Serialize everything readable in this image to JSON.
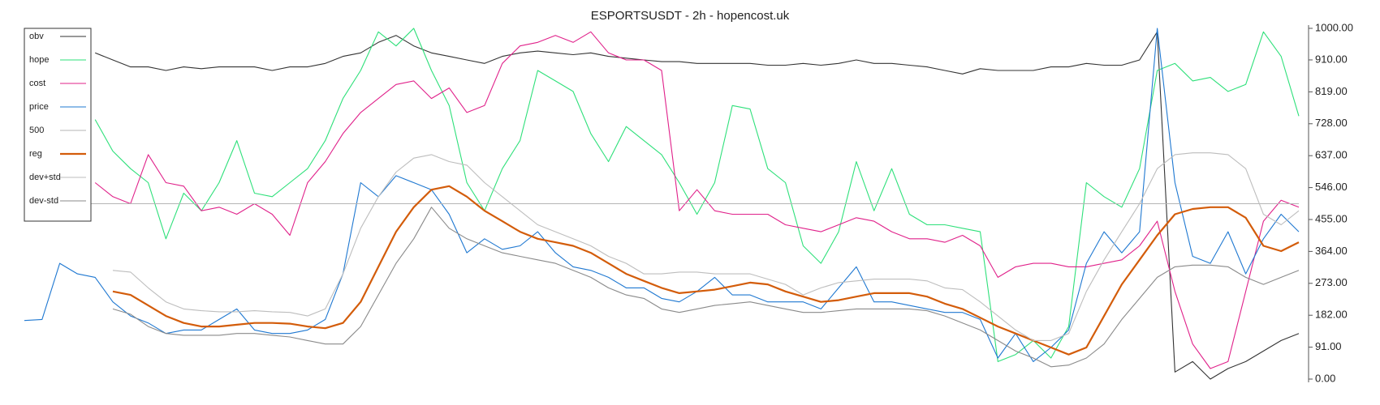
{
  "chart_data": {
    "type": "line",
    "title": "ESPORTSUSDT - 2h - hopencost.uk",
    "ylim": [
      0,
      1000
    ],
    "yticks": [
      {
        "value": 0,
        "label": "0.00"
      },
      {
        "value": 91,
        "label": "91.00"
      },
      {
        "value": 182,
        "label": "182.00"
      },
      {
        "value": 273,
        "label": "273.00"
      },
      {
        "value": 364,
        "label": "364.00"
      },
      {
        "value": 455,
        "label": "455.00"
      },
      {
        "value": 546,
        "label": "546.00"
      },
      {
        "value": 637,
        "label": "637.00"
      },
      {
        "value": 728,
        "label": "728.00"
      },
      {
        "value": 819,
        "label": "819.00"
      },
      {
        "value": 910,
        "label": "910.00"
      },
      {
        "value": 1000,
        "label": "1000.00"
      }
    ],
    "legend": "top-left",
    "series": [
      {
        "name": "obv",
        "color": "#333333",
        "values": [
          null,
          null,
          null,
          null,
          930,
          910,
          890,
          890,
          880,
          890,
          885,
          890,
          890,
          890,
          880,
          890,
          890,
          900,
          920,
          930,
          960,
          980,
          950,
          930,
          920,
          910,
          900,
          920,
          930,
          935,
          930,
          925,
          930,
          920,
          915,
          910,
          905,
          905,
          900,
          900,
          900,
          900,
          895,
          895,
          900,
          895,
          900,
          910,
          900,
          900,
          895,
          890,
          880,
          870,
          885,
          880,
          880,
          880,
          890,
          890,
          900,
          895,
          895,
          910,
          990,
          20,
          50,
          0,
          30,
          50,
          80,
          110,
          130
        ]
      },
      {
        "name": "hope",
        "color": "#2ee07a",
        "values": [
          null,
          null,
          null,
          null,
          740,
          650,
          600,
          560,
          400,
          530,
          480,
          560,
          680,
          530,
          520,
          560,
          600,
          680,
          800,
          880,
          990,
          950,
          1000,
          880,
          780,
          560,
          480,
          600,
          680,
          880,
          850,
          820,
          700,
          620,
          720,
          680,
          640,
          560,
          470,
          560,
          780,
          770,
          600,
          560,
          380,
          330,
          420,
          620,
          480,
          600,
          470,
          440,
          440,
          430,
          420,
          50,
          70,
          110,
          60,
          150,
          560,
          520,
          490,
          600,
          880,
          900,
          850,
          860,
          820,
          840,
          990,
          920,
          750
        ]
      },
      {
        "name": "cost",
        "color": "#e0218a",
        "values": [
          null,
          null,
          null,
          null,
          560,
          520,
          500,
          640,
          560,
          550,
          480,
          490,
          470,
          500,
          470,
          410,
          560,
          620,
          700,
          760,
          800,
          840,
          850,
          800,
          830,
          760,
          780,
          900,
          950,
          960,
          980,
          960,
          990,
          930,
          910,
          910,
          880,
          480,
          540,
          480,
          470,
          470,
          470,
          440,
          430,
          420,
          440,
          460,
          450,
          420,
          400,
          400,
          390,
          410,
          380,
          290,
          320,
          330,
          330,
          320,
          320,
          330,
          340,
          380,
          450,
          250,
          100,
          30,
          50,
          250,
          450,
          510,
          490
        ]
      },
      {
        "name": "price",
        "color": "#1f78d1",
        "values": [
          167,
          170,
          330,
          300,
          290,
          220,
          180,
          160,
          130,
          140,
          140,
          170,
          200,
          140,
          130,
          130,
          140,
          170,
          300,
          560,
          520,
          580,
          560,
          540,
          470,
          360,
          400,
          370,
          380,
          420,
          360,
          320,
          310,
          290,
          260,
          260,
          230,
          220,
          250,
          290,
          240,
          240,
          220,
          220,
          220,
          200,
          260,
          320,
          220,
          220,
          210,
          200,
          190,
          190,
          170,
          60,
          130,
          50,
          90,
          140,
          330,
          420,
          360,
          420,
          1000,
          560,
          350,
          330,
          420,
          300,
          400,
          470,
          420
        ]
      },
      {
        "name": "500",
        "color": "#b5b5b5",
        "values": [
          500,
          500,
          500,
          500,
          500,
          500,
          500,
          500,
          500,
          500,
          500,
          500,
          500,
          500,
          500,
          500,
          500,
          500,
          500,
          500,
          500,
          500,
          500,
          500,
          500,
          500,
          500,
          500,
          500,
          500,
          500,
          500,
          500,
          500,
          500,
          500,
          500,
          500,
          500,
          500,
          500,
          500,
          500,
          500,
          500,
          500,
          500,
          500,
          500,
          500,
          500,
          500,
          500,
          500,
          500,
          500,
          500,
          500,
          500,
          500,
          500,
          500,
          500,
          500,
          500,
          500,
          500,
          500,
          500,
          500,
          500,
          500,
          500
        ]
      },
      {
        "name": "reg",
        "color": "#d35c0a",
        "values": [
          null,
          null,
          null,
          null,
          null,
          250,
          240,
          210,
          180,
          160,
          150,
          150,
          155,
          160,
          160,
          158,
          150,
          145,
          160,
          220,
          320,
          420,
          490,
          540,
          550,
          520,
          480,
          450,
          420,
          400,
          390,
          380,
          360,
          330,
          300,
          280,
          260,
          245,
          250,
          255,
          265,
          275,
          270,
          250,
          235,
          220,
          225,
          235,
          245,
          245,
          245,
          235,
          215,
          200,
          175,
          150,
          130,
          110,
          90,
          70,
          90,
          180,
          270,
          340,
          410,
          470,
          485,
          490,
          490,
          460,
          380,
          365,
          390
        ]
      },
      {
        "name": "dev+std",
        "color": "#bdbdbd",
        "values": [
          null,
          null,
          null,
          null,
          null,
          310,
          305,
          260,
          220,
          200,
          195,
          192,
          192,
          195,
          192,
          190,
          180,
          200,
          300,
          430,
          520,
          590,
          630,
          640,
          620,
          610,
          560,
          520,
          480,
          440,
          420,
          400,
          380,
          350,
          330,
          300,
          300,
          305,
          305,
          300,
          300,
          300,
          285,
          270,
          240,
          260,
          275,
          280,
          285,
          285,
          285,
          280,
          260,
          255,
          220,
          180,
          140,
          110,
          110,
          130,
          250,
          340,
          420,
          500,
          600,
          640,
          645,
          645,
          640,
          600,
          470,
          440,
          480
        ]
      },
      {
        "name": "dev-std",
        "color": "#8a8a8a",
        "values": [
          null,
          null,
          null,
          null,
          null,
          200,
          185,
          150,
          130,
          125,
          125,
          125,
          130,
          130,
          125,
          120,
          110,
          100,
          100,
          150,
          240,
          330,
          400,
          490,
          430,
          400,
          380,
          360,
          350,
          340,
          330,
          310,
          290,
          260,
          240,
          230,
          200,
          190,
          200,
          210,
          215,
          220,
          210,
          200,
          190,
          190,
          195,
          200,
          200,
          200,
          200,
          195,
          180,
          160,
          140,
          110,
          80,
          60,
          35,
          40,
          60,
          100,
          170,
          230,
          290,
          320,
          325,
          325,
          320,
          290,
          270,
          290,
          310
        ]
      }
    ]
  }
}
